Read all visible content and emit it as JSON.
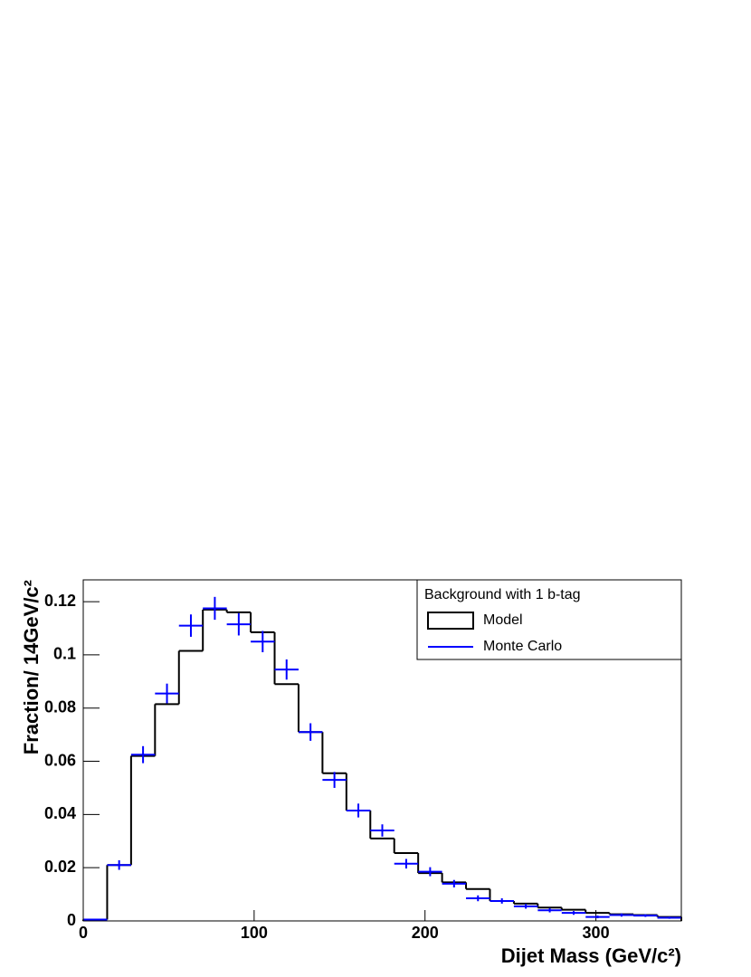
{
  "chart_data": {
    "type": "histogram",
    "xlabel": "Dijet Mass (GeV/c²)",
    "ylabel": "Fraction/ 14GeV/c²",
    "legend_title": "Background with 1 b-tag",
    "legend": "upper right",
    "bins": [
      0,
      14,
      28,
      42,
      56,
      70,
      84,
      98,
      112,
      126,
      140,
      154,
      168,
      182,
      196,
      210,
      224,
      238,
      252,
      266,
      280,
      294,
      308,
      322,
      336,
      350
    ],
    "series": [
      {
        "name": "Model",
        "color": "#000000",
        "style": "step",
        "values": [
          0.0005,
          0.021,
          0.062,
          0.0815,
          0.1015,
          0.117,
          0.116,
          0.1085,
          0.089,
          0.071,
          0.0555,
          0.0415,
          0.031,
          0.0255,
          0.018,
          0.0145,
          0.012,
          0.0075,
          0.0065,
          0.005,
          0.0042,
          0.003,
          0.0025,
          0.0022,
          0.0015
        ]
      },
      {
        "name": "Monte Carlo",
        "color": "#0000ff",
        "style": "errorbar",
        "values": [
          0.0005,
          0.021,
          0.0625,
          0.0855,
          0.111,
          0.1175,
          0.1115,
          0.105,
          0.0945,
          0.071,
          0.053,
          0.0415,
          0.034,
          0.0215,
          0.0185,
          0.014,
          0.0085,
          0.0075,
          0.0055,
          0.004,
          0.003,
          0.0015,
          0.0022,
          0.002,
          0.0012
        ],
        "errors": [
          0.0003,
          0.0018,
          0.0032,
          0.0037,
          0.0042,
          0.0043,
          0.0042,
          0.004,
          0.0038,
          0.0033,
          0.003,
          0.0026,
          0.0023,
          0.0018,
          0.0017,
          0.0014,
          0.0011,
          0.001,
          0.0009,
          0.0008,
          0.0007,
          0.0005,
          0.0006,
          0.0005,
          0.0004
        ]
      }
    ],
    "xlim": [
      0,
      350
    ],
    "ylim": [
      0,
      0.1282
    ],
    "xticks": [
      0,
      100,
      200,
      300
    ],
    "yticks": [
      0,
      0.02,
      0.04,
      0.06,
      0.08,
      0.1,
      0.12
    ]
  }
}
